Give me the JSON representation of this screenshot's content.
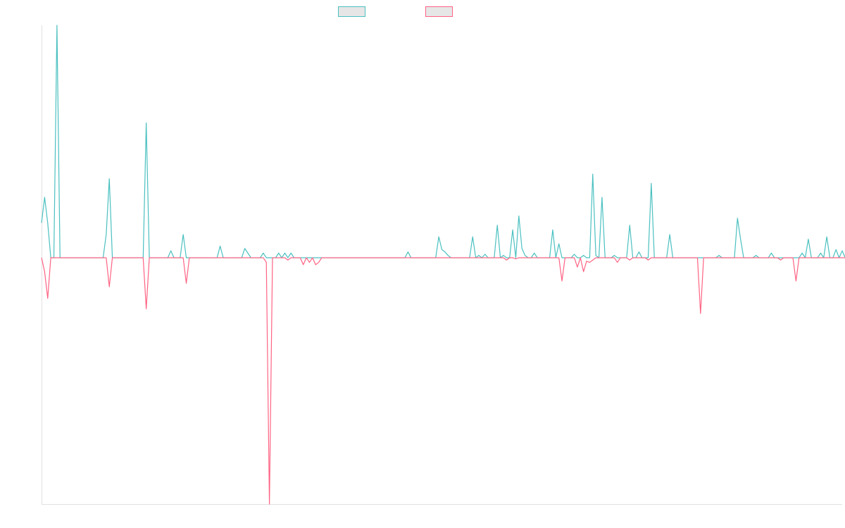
{
  "chart_data": {
    "type": "line",
    "title": "",
    "xlabel": "",
    "ylabel": "",
    "ylim": [
      -10.6,
      10
    ],
    "grid": false,
    "legend_position": "top",
    "x_count": 261,
    "series": [
      {
        "name": "",
        "color": "#4bc0c0",
        "values": [
          1.5,
          2.6,
          1.5,
          0,
          0,
          10,
          0,
          0,
          0,
          0,
          0,
          0,
          0,
          0,
          0,
          0,
          0,
          0,
          0,
          0,
          0,
          1,
          3.4,
          0,
          0,
          0,
          0,
          0,
          0,
          0,
          0,
          0,
          0,
          0,
          5.8,
          0,
          0,
          0,
          0,
          0,
          0,
          0,
          0.3,
          0,
          0,
          0,
          1,
          0,
          0,
          0,
          0,
          0,
          0,
          0,
          0,
          0,
          0,
          0,
          0.5,
          0,
          0,
          0,
          0,
          0,
          0,
          0,
          0.4,
          0.2,
          0,
          0,
          0,
          0,
          0.2,
          0,
          0,
          0,
          0,
          0.2,
          0,
          0.2,
          0,
          0.2,
          0,
          0,
          0,
          0,
          0,
          0,
          0,
          0,
          0,
          0,
          0,
          0,
          0,
          0,
          0,
          0,
          0,
          0,
          0,
          0,
          0,
          0,
          0,
          0,
          0,
          0,
          0,
          0,
          0,
          0,
          0,
          0,
          0,
          0,
          0,
          0,
          0,
          0.25,
          0,
          0,
          0,
          0,
          0,
          0,
          0,
          0,
          0,
          0.9,
          0.35,
          0.25,
          0.1,
          0,
          0,
          0,
          0,
          0,
          0,
          0,
          0.9,
          0,
          0.1,
          0,
          0.15,
          0,
          0,
          0,
          1.4,
          0,
          0.1,
          0,
          0,
          1.2,
          0,
          1.8,
          0.4,
          0.1,
          0,
          0,
          0.2,
          0,
          0,
          0,
          0,
          0,
          1.2,
          0,
          0.6,
          0,
          0,
          0,
          0,
          0.15,
          0,
          0,
          0.1,
          0,
          0,
          3.6,
          0.1,
          0,
          2.6,
          0,
          0,
          0,
          0.1,
          0,
          0,
          0,
          0,
          1.4,
          0,
          0,
          0.25,
          0,
          0,
          0,
          3.2,
          0,
          0,
          0,
          0,
          0,
          1,
          0,
          0,
          0,
          0,
          0,
          0,
          0,
          0,
          0,
          0,
          0,
          0,
          0,
          0,
          0,
          0.1,
          0,
          0,
          0,
          0,
          0,
          1.7,
          0.8,
          0,
          0,
          0,
          0,
          0.1,
          0,
          0,
          0,
          0,
          0.2,
          0,
          0,
          0,
          0,
          0,
          0,
          0,
          0,
          0,
          0.2,
          0,
          0.8,
          0,
          0,
          0,
          0.2,
          0,
          0.9,
          0,
          0,
          0.35,
          0,
          0.3,
          0,
          0.3,
          0,
          0.05
        ],
        "values_name": "series-1"
      },
      {
        "name": "",
        "color": "#ff6384",
        "values": [
          0,
          -0.6,
          -1.75,
          0,
          0,
          0,
          0,
          0,
          0,
          0,
          0,
          0,
          0,
          0,
          0,
          0,
          0,
          0,
          0,
          0,
          0,
          0,
          -1.25,
          0,
          0,
          0,
          0,
          0,
          0,
          0,
          0,
          0,
          0,
          0,
          -2.2,
          0,
          0,
          0,
          0,
          0,
          0,
          0,
          0,
          0,
          0,
          0,
          0,
          -1.1,
          0,
          0,
          0,
          0,
          0,
          0,
          0,
          0,
          0,
          0,
          0,
          0,
          0,
          0,
          0,
          0,
          0,
          0,
          0,
          0,
          0,
          0,
          0,
          0,
          0,
          -0.2,
          -10.6,
          0,
          0,
          0,
          0,
          0,
          -0.1,
          0,
          0,
          0,
          0,
          -0.3,
          0,
          -0.2,
          0,
          -0.3,
          -0.2,
          0,
          0,
          0,
          0,
          0,
          0,
          0,
          0,
          0,
          0,
          0,
          0,
          0,
          0,
          0,
          0,
          0,
          0,
          0,
          0,
          0,
          0,
          0,
          0,
          0,
          0,
          0,
          0,
          0,
          0,
          0,
          0,
          0,
          0,
          0,
          0,
          0,
          0,
          0,
          0,
          0,
          0,
          0,
          0,
          0,
          0,
          0,
          0,
          0,
          0,
          0,
          0,
          0,
          0,
          0,
          0,
          0,
          0,
          0,
          0,
          -0.1,
          0,
          0,
          -0.05,
          0,
          0,
          0,
          0,
          0,
          0,
          0,
          0,
          0,
          0,
          0,
          0,
          0,
          0,
          -1,
          0,
          0,
          0,
          0,
          -0.4,
          0,
          -0.6,
          -0.15,
          -0.2,
          -0.1,
          0,
          0,
          0,
          0,
          0,
          0,
          0,
          -0.2,
          0,
          0,
          0,
          -0.1,
          0,
          0,
          0,
          0,
          0,
          -0.1,
          0,
          0,
          0,
          0,
          0,
          0,
          0,
          0,
          0,
          0,
          0,
          0,
          0,
          0,
          0,
          0,
          -2.4,
          0,
          0,
          0,
          0,
          0,
          0,
          0,
          0,
          0,
          0,
          0,
          0,
          0,
          0,
          0,
          0,
          0,
          0,
          0,
          0,
          0,
          0,
          0,
          0,
          0,
          -0.1,
          0,
          0,
          0,
          0,
          -1,
          0,
          0,
          0,
          0,
          0,
          0,
          0,
          0,
          0,
          0,
          0,
          0,
          0,
          0,
          0,
          0,
          0,
          0,
          0,
          0,
          0,
          0,
          -0.2,
          0,
          0,
          0,
          0,
          -0.2,
          0,
          0,
          0,
          -0.1,
          0,
          0,
          0,
          0,
          -0.1,
          0
        ],
        "values_name": "series-2"
      }
    ]
  },
  "legend": {
    "items": [
      {
        "label": "",
        "color": "#4bc0c0"
      },
      {
        "label": "",
        "color": "#ff6384"
      }
    ]
  }
}
